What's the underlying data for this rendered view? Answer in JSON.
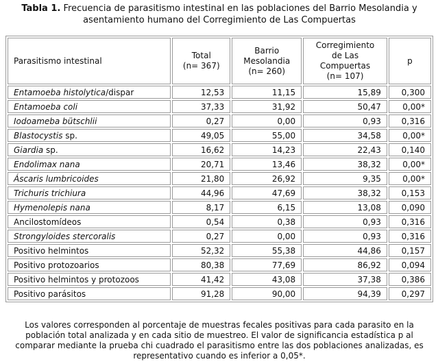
{
  "title": {
    "label": "Tabla 1.",
    "text": "Frecuencia de parasitismo intestinal en las poblaciones del Barrio Mesolandia y asentamiento humano del Corregimiento de Las Compuertas"
  },
  "table": {
    "header": [
      [
        "Parasitismo intestinal"
      ],
      [
        "Total",
        "(n= 367)"
      ],
      [
        "Barrio",
        "Mesolandia",
        "(n= 260)"
      ],
      [
        "Corregimiento",
        "de Las",
        "Compuertas",
        "(n= 107)"
      ],
      [
        "p"
      ]
    ],
    "rows": [
      [
        [
          {
            "text": "Entamoeba histolytica",
            "italic": true
          },
          {
            "text": "/dispar"
          }
        ],
        "12,53",
        "11,15",
        "15,89",
        "0,300"
      ],
      [
        [
          {
            "text": "Entamoeba coli",
            "italic": true
          }
        ],
        "37,33",
        "31,92",
        "50,47",
        "0,00*"
      ],
      [
        [
          {
            "text": "Iodoameba bütschlii",
            "italic": true
          }
        ],
        "0,27",
        "0,00",
        "0,93",
        "0,316"
      ],
      [
        [
          {
            "text": "Blastocystis",
            "italic": true
          },
          {
            "text": " sp."
          }
        ],
        "49,05",
        "55,00",
        "34,58",
        "0,00*"
      ],
      [
        [
          {
            "text": "Giardia",
            "italic": true
          },
          {
            "text": " sp."
          }
        ],
        "16,62",
        "14,23",
        "22,43",
        "0,140"
      ],
      [
        [
          {
            "text": "Endolimax nana",
            "italic": true
          }
        ],
        "20,71",
        "13,46",
        "38,32",
        "0,00*"
      ],
      [
        [
          {
            "text": "Áscaris lumbricoides",
            "italic": true
          }
        ],
        "21,80",
        "26,92",
        "9,35",
        "0,00*"
      ],
      [
        [
          {
            "text": "Trichuris trichiura",
            "italic": true
          }
        ],
        "44,96",
        "47,69",
        "38,32",
        "0,153"
      ],
      [
        [
          {
            "text": "Hymenolepis nana",
            "italic": true
          }
        ],
        "8,17",
        "6,15",
        "13,08",
        "0,090"
      ],
      [
        [
          {
            "text": "Ancilostomídeos"
          }
        ],
        "0,54",
        "0,38",
        "0,93",
        "0,316"
      ],
      [
        [
          {
            "text": "Strongyloides stercoralis",
            "italic": true
          }
        ],
        "0,27",
        "0,00",
        "0,93",
        "0,316"
      ],
      [
        [
          {
            "text": "Positivo helmintos"
          }
        ],
        "52,32",
        "55,38",
        "44,86",
        "0,157"
      ],
      [
        [
          {
            "text": "Positivo protozoarios"
          }
        ],
        "80,38",
        "77,69",
        "86,92",
        "0,094"
      ],
      [
        [
          {
            "text": "Positivo helmintos y protozoos"
          }
        ],
        "41,42",
        "43,08",
        "37,38",
        "0,386"
      ],
      [
        [
          {
            "text": "Positivo parásitos"
          }
        ],
        "91,28",
        "90,00",
        "94,39",
        "0,297"
      ]
    ]
  },
  "footnote": "Los valores corresponden al porcentaje de muestras fecales positivas para cada parasito en la población total analizada y en cada sitio de muestreo. El valor de significancia estadística p al comparar mediante la prueba chi cuadrado el parasitismo entre las dos poblaciones analizadas, es representativo cuando es inferior a 0,05*."
}
